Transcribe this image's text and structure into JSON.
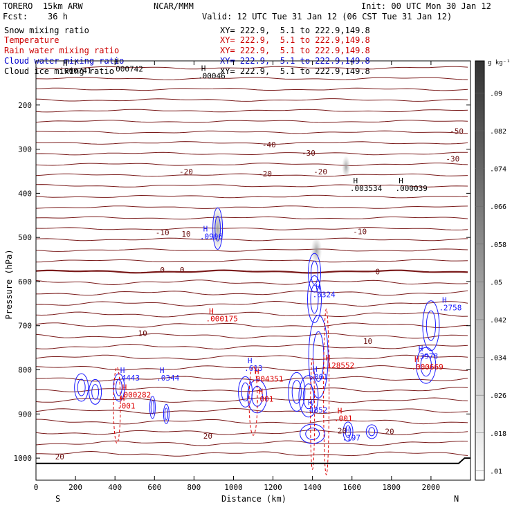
{
  "header": {
    "model": "TORERO  15km ARW",
    "center": "NCAR/MMM",
    "init": "Init: 00 UTC Mon 30 Jan 12",
    "fcst": "Fcst:    36 h",
    "valid": "Valid: 12 UTC Tue 31 Jan 12 (06 CST Tue 31 Jan 12)"
  },
  "legend": [
    {
      "label": "Snow mixing ratio",
      "xy": "XY= 222.9,  5.1 to 222.9,149.8",
      "color": "#000000"
    },
    {
      "label": "Temperature",
      "xy": "XY= 222.9,  5.1 to 222.9,149.8",
      "color": "#cc0000"
    },
    {
      "label": "Rain water mixing ratio",
      "xy": "XY= 222.9,  5.1 to 222.9,149.8",
      "color": "#cc0000"
    },
    {
      "label": "Cloud water mixing ratio",
      "xy": "XY= 222.9,  5.1 to 222.9,149.8",
      "color": "#0000cc"
    },
    {
      "label": "Cloud ice mixing ratio",
      "xy": "XY= 222.9,  5.1 to 222.9,149.8",
      "color": "#000000"
    }
  ],
  "chart_data": {
    "type": "contour-cross-section",
    "xlabel": "Distance (km)",
    "ylabel": "Pressure (hPa)",
    "x_ticks": [
      0,
      200,
      400,
      600,
      800,
      1000,
      1200,
      1400,
      1600,
      1800,
      2000
    ],
    "y_ticks": [
      200,
      300,
      400,
      500,
      600,
      700,
      800,
      900,
      1000
    ],
    "xlim": [
      0,
      2200
    ],
    "ylim": [
      1050,
      100
    ],
    "x_end_labels": {
      "left": "S",
      "right": "N"
    },
    "colorbar": {
      "unit": "g kg⁻¹",
      "ticks": [
        ".09",
        ".082",
        ".074",
        ".066",
        ".058",
        ".05",
        ".042",
        ".034",
        ".026",
        ".018",
        ".01"
      ]
    },
    "temperature_labels": [
      {
        "text": "-50",
        "x": 2130,
        "p": 265
      },
      {
        "text": "-40",
        "x": 1180,
        "p": 296
      },
      {
        "text": "-30",
        "x": 1380,
        "p": 315
      },
      {
        "text": "-30",
        "x": 2110,
        "p": 328
      },
      {
        "text": "-20",
        "x": 760,
        "p": 357
      },
      {
        "text": "-20",
        "x": 1160,
        "p": 362
      },
      {
        "text": "-20",
        "x": 1440,
        "p": 357
      },
      {
        "text": "-10",
        "x": 640,
        "p": 495
      },
      {
        "text": "-10",
        "x": 1640,
        "p": 493
      },
      {
        "text": "10",
        "x": 760,
        "p": 498
      },
      {
        "text": "0",
        "x": 640,
        "p": 580
      },
      {
        "text": "0",
        "x": 740,
        "p": 580
      },
      {
        "text": "0",
        "x": 1730,
        "p": 584
      },
      {
        "text": "10",
        "x": 540,
        "p": 723
      },
      {
        "text": "10",
        "x": 1680,
        "p": 741
      },
      {
        "text": "20",
        "x": 1550,
        "p": 944
      },
      {
        "text": "20",
        "x": 870,
        "p": 956
      },
      {
        "text": "20",
        "x": 120,
        "p": 1003
      },
      {
        "text": "20",
        "x": 1790,
        "p": 946
      }
    ],
    "extrema": [
      {
        "text": ".000741",
        "x": 120,
        "p": 128,
        "color": "black"
      },
      {
        "text": ".000742",
        "x": 380,
        "p": 124,
        "color": "black"
      },
      {
        "text": ".00046",
        "x": 820,
        "p": 140,
        "color": "black"
      },
      {
        "text": ".003534",
        "x": 1590,
        "p": 395,
        "color": "black"
      },
      {
        "text": ".000039",
        "x": 1820,
        "p": 395,
        "color": "black"
      },
      {
        "text": ".0906",
        "x": 830,
        "p": 504,
        "color": "blue"
      },
      {
        "text": ".6324",
        "x": 1400,
        "p": 635,
        "color": "blue"
      },
      {
        "text": ".2758",
        "x": 2040,
        "p": 665,
        "color": "blue"
      },
      {
        "text": ".000175",
        "x": 860,
        "p": 690,
        "color": "red"
      },
      {
        "text": ".3978",
        "x": 1920,
        "p": 775,
        "color": "blue"
      },
      {
        "text": ".000669",
        "x": 1900,
        "p": 799,
        "color": "red"
      },
      {
        "text": ".613",
        "x": 1055,
        "p": 802,
        "color": "blue"
      },
      {
        "text": ".128552",
        "x": 1450,
        "p": 796,
        "color": "red"
      },
      {
        "text": ".4443",
        "x": 410,
        "p": 824,
        "color": "blue"
      },
      {
        "text": ".0344",
        "x": 610,
        "p": 824,
        "color": "blue"
      },
      {
        "text": ".001",
        "x": 1385,
        "p": 822,
        "color": "blue"
      },
      {
        "text": ".004351",
        "x": 1090,
        "p": 827,
        "color": "red"
      },
      {
        "text": ".000282",
        "x": 420,
        "p": 863,
        "color": "red"
      },
      {
        "text": ".001",
        "x": 1110,
        "p": 872,
        "color": "red"
      },
      {
        "text": ".001",
        "x": 410,
        "p": 888,
        "color": "red"
      },
      {
        "text": ".4852",
        "x": 1360,
        "p": 897,
        "color": "blue"
      },
      {
        "text": ".001",
        "x": 1510,
        "p": 916,
        "color": "red"
      },
      {
        "text": ".197",
        "x": 1550,
        "p": 960,
        "color": "blue"
      }
    ]
  }
}
